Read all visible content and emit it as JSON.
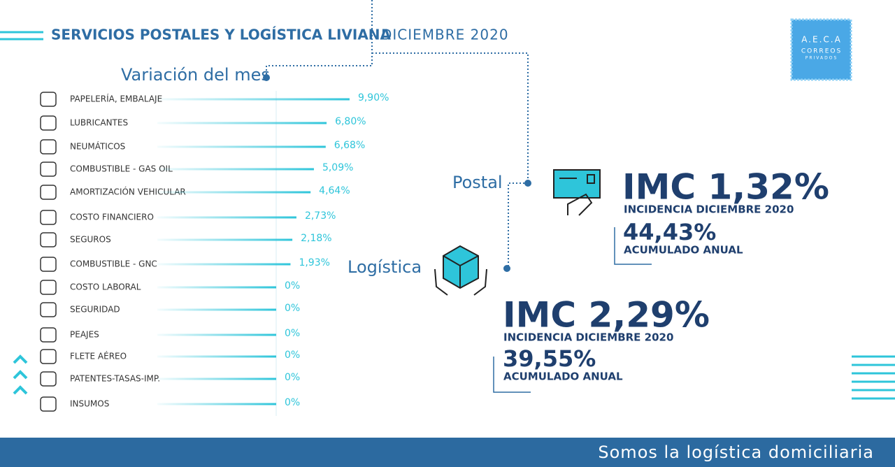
{
  "header": {
    "title": "SERVICIOS POSTALES Y LOGÍSTICA LIVIANA",
    "date": "DICIEMBRE 2020"
  },
  "logo": {
    "name": "A.E.C.A",
    "line1": "CORREOS",
    "line2": "PRIVADOS"
  },
  "chart_data": {
    "type": "bar",
    "title": "Variación del mes",
    "color": "#2ec5da",
    "categories": [
      "PAPELERÍA, EMBALAJE",
      "LUBRICANTES",
      "NEUMÁTICOS",
      "COMBUSTIBLE - GAS OIL",
      "AMORTIZACIÓN VEHICULAR",
      "COSTO FINANCIERO",
      "SEGUROS",
      "COMBUSTIBLE - GNC",
      "COSTO LABORAL",
      "SEGURIDAD",
      "PEAJES",
      "FLETE AÉREO",
      "PATENTES-TASAS-IMP.",
      "INSUMOS"
    ],
    "values": [
      9.9,
      6.8,
      6.68,
      5.09,
      4.64,
      2.73,
      2.18,
      1.93,
      0,
      0,
      0,
      0,
      0,
      0
    ],
    "value_labels": [
      "9,90%",
      "6,80%",
      "6,68%",
      "5,09%",
      "4,64%",
      "2,73%",
      "2,18%",
      "1,93%",
      "0%",
      "0%",
      "0%",
      "0%",
      "0%",
      "0%"
    ]
  },
  "postal": {
    "label": "Postal",
    "imc": "IMC 1,32%",
    "incidence": "INCIDENCIA DICIEMBRE 2020",
    "accumulated": "44,43%",
    "accumulated_label": "ACUMULADO ANUAL"
  },
  "logistics": {
    "label": "Logística",
    "imc": "IMC 2,29%",
    "incidence": "INCIDENCIA DICIEMBRE 2020",
    "accumulated": "39,55%",
    "accumulated_label": "ACUMULADO ANUAL"
  },
  "footer": {
    "tagline": "Somos la logística domiciliaria"
  }
}
